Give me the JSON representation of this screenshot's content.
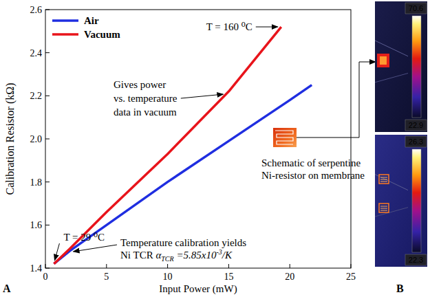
{
  "chart_data": {
    "type": "line",
    "panel_label": "A",
    "x_label": "Input Power (mW)",
    "y_label": "Calibration Resistor (kΩ)",
    "xlim": [
      0,
      25
    ],
    "xticks": [
      0,
      5,
      10,
      15,
      20,
      25
    ],
    "ylim": [
      1.4,
      2.6
    ],
    "yticks": [
      1.4,
      1.6,
      1.8,
      {
        "value": 2,
        "label": "2.0"
      },
      2.2,
      2.4,
      2.6
    ],
    "grid": false,
    "legend": "upper left",
    "series": [
      {
        "name": "Air",
        "color": "#1f2ee0",
        "x": [
          0.7,
          2,
          5,
          10,
          15,
          20,
          21.8
        ],
        "values": [
          1.42,
          1.48,
          1.6,
          1.8,
          1.99,
          2.18,
          2.25
        ]
      },
      {
        "name": "Vacuum",
        "color": "#e8141b",
        "x": [
          0.7,
          2,
          5,
          10,
          15,
          19.3
        ],
        "values": [
          1.42,
          1.49,
          1.66,
          1.93,
          2.22,
          2.52
        ]
      }
    ],
    "annotations": {
      "t_high": "T = 160 ⁰C",
      "t_low": "T = 29 ⁰C",
      "vacuum_note": [
        "Gives power",
        "vs. temperature",
        "data in vacuum"
      ],
      "calibration_note": {
        "line1": "Temperature calibration  yields",
        "line2": {
          "prefix": "Ni TCR ",
          "symbol": "α",
          "sub": "TCR",
          "value": " =5.85x10",
          "sup": "-3",
          "unit": "/K"
        }
      },
      "schematic_note": [
        "Schematic of serpentine",
        "Ni-resistor on membrane"
      ]
    }
  },
  "panel_b": {
    "label": "B",
    "images": [
      {
        "max": 70.6,
        "min": 22.9
      },
      {
        "max": 26.3,
        "min": 22.3
      }
    ]
  }
}
